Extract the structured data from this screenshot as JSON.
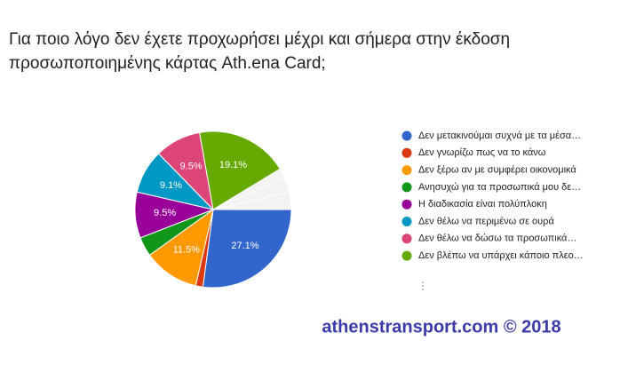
{
  "chart_data": {
    "type": "pie",
    "title": [
      "Για ποιο λόγο δεν έχετε προχωρήσει μέχρι και σήμερα στην έκδοση",
      "προσωποποιημένης κάρτας Ath.ena Card;"
    ],
    "categories": [
      "Δεν μετακινούμαι συχνά με τα μέσα…",
      "Δεν γνωρίζω πως να το κάνω",
      "Δεν ξέρω αν με συμφέρει οικονομικά",
      "Ανησυχώ για τα προσωπικά μου δε…",
      "Η διαδικασία είναι πολύπλοκη",
      "Δεν θέλω να περιμένω σε ουρά",
      "Δεν θέλω να δώσω τα προσωπικά…",
      "Δεν βλέπω να υπάρχει κάποιο πλεο…"
    ],
    "values": [
      27.1,
      1.5,
      11.5,
      4,
      9.5,
      9.1,
      9.5,
      19.1
    ],
    "value_labels": [
      "27.1%",
      null,
      "11.5%",
      null,
      "9.5%",
      "9.1%",
      "9.5%",
      "19.1%"
    ],
    "colors": [
      "#3366cc",
      "#dc3912",
      "#ff9900",
      "#109618",
      "#990099",
      "#0099c6",
      "#dd4477",
      "#66aa00"
    ],
    "legend": "right",
    "watermark": "athenstransport.com © 2018"
  }
}
